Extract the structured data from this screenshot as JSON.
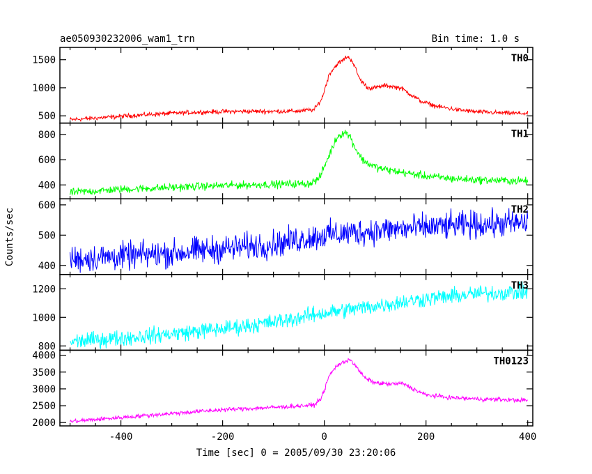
{
  "chart_data": {
    "type": "line",
    "title": "ae050930232006_wam1_trn",
    "subtitle": "Bin time: 1.0 s",
    "xlabel": "Time [sec] 0 = 2005/09/30 23:20:06",
    "ylabel": "Counts/sec",
    "xlim": [
      -520,
      410
    ],
    "xticks": [
      -400,
      -200,
      0,
      200,
      400
    ],
    "grid": false,
    "panels": [
      {
        "name": "TH0",
        "color": "#ff0000",
        "ylim": [
          370,
          1720
        ],
        "yticks": [
          500,
          1000,
          1500
        ],
        "x": [
          -500,
          -450,
          -400,
          -350,
          -300,
          -250,
          -200,
          -150,
          -100,
          -50,
          -20,
          -5,
          10,
          25,
          35,
          45,
          55,
          70,
          85,
          100,
          120,
          150,
          170,
          190,
          220,
          260,
          300,
          350,
          400
        ],
        "values": [
          430,
          460,
          490,
          520,
          545,
          565,
          575,
          580,
          580,
          585,
          610,
          800,
          1250,
          1420,
          1480,
          1560,
          1480,
          1150,
          1000,
          1000,
          1040,
          1000,
          880,
          760,
          670,
          610,
          570,
          550,
          540
        ],
        "noise": 28
      },
      {
        "name": "TH1",
        "color": "#00ff00",
        "ylim": [
          290,
          890
        ],
        "yticks": [
          400,
          600,
          800
        ],
        "x": [
          -500,
          -400,
          -300,
          -200,
          -100,
          -30,
          -10,
          10,
          25,
          40,
          50,
          60,
          75,
          90,
          110,
          150,
          200,
          250,
          300,
          400
        ],
        "values": [
          340,
          365,
          380,
          395,
          405,
          410,
          450,
          640,
          780,
          820,
          790,
          700,
          600,
          560,
          530,
          500,
          470,
          450,
          440,
          430
        ],
        "noise": 22
      },
      {
        "name": "TH2",
        "color": "#0000ff",
        "ylim": [
          370,
          620
        ],
        "yticks": [
          400,
          500,
          600
        ],
        "x": [
          -500,
          -300,
          -100,
          0,
          100,
          200,
          300,
          400
        ],
        "values": [
          420,
          440,
          470,
          500,
          515,
          525,
          535,
          540
        ],
        "noise": 32
      },
      {
        "name": "TH3",
        "color": "#00ffff",
        "ylim": [
          770,
          1300
        ],
        "yticks": [
          800,
          1000,
          1200
        ],
        "x": [
          -500,
          -400,
          -300,
          -200,
          -100,
          0,
          100,
          200,
          300,
          400
        ],
        "values": [
          830,
          855,
          885,
          920,
          965,
          1030,
          1080,
          1130,
          1165,
          1180
        ],
        "noise": 40
      },
      {
        "name": "TH0123",
        "color": "#ff00ff",
        "ylim": [
          1900,
          4150
        ],
        "yticks": [
          2000,
          2500,
          3000,
          3500,
          4000
        ],
        "x": [
          -500,
          -400,
          -300,
          -200,
          -100,
          -20,
          -5,
          10,
          25,
          40,
          50,
          60,
          80,
          100,
          130,
          155,
          180,
          200,
          250,
          300,
          400
        ],
        "values": [
          2030,
          2150,
          2270,
          2380,
          2450,
          2520,
          2750,
          3400,
          3700,
          3800,
          3900,
          3700,
          3320,
          3180,
          3140,
          3160,
          2960,
          2820,
          2740,
          2700,
          2660
        ],
        "noise": 45
      }
    ]
  }
}
